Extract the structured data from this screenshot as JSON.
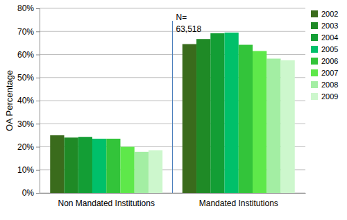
{
  "chart_data": {
    "type": "bar",
    "y_label": "OA Percentage",
    "annotation": [
      "N=",
      "63,518"
    ],
    "categories": [
      "Non Mandated Institutions",
      "Mandated Institutions"
    ],
    "series": [
      {
        "name": "2002",
        "color": "#3a6b1c",
        "values": [
          25,
          64.5
        ]
      },
      {
        "name": "2003",
        "color": "#1f8a26",
        "values": [
          24,
          66.7
        ]
      },
      {
        "name": "2004",
        "color": "#139e35",
        "values": [
          24.3,
          69.2
        ]
      },
      {
        "name": "2005",
        "color": "#00c06a",
        "values": [
          23.5,
          69.5
        ]
      },
      {
        "name": "2006",
        "color": "#33c43a",
        "values": [
          23.5,
          64.2
        ]
      },
      {
        "name": "2007",
        "color": "#5ee84a",
        "values": [
          20,
          61.5
        ]
      },
      {
        "name": "2008",
        "color": "#a3eea3",
        "values": [
          17.8,
          58.2
        ]
      },
      {
        "name": "2009",
        "color": "#cdf7cd",
        "values": [
          18.5,
          57.5
        ]
      }
    ],
    "ylim": [
      0,
      80
    ],
    "yticks": [
      {
        "value": 0,
        "label": "0%"
      },
      {
        "value": 10,
        "label": "10%"
      },
      {
        "value": 20,
        "label": "20%"
      },
      {
        "value": 30,
        "label": "30%"
      },
      {
        "value": 40,
        "label": "40%"
      },
      {
        "value": 50,
        "label": "50%"
      },
      {
        "value": 60,
        "label": "60%"
      },
      {
        "value": 70,
        "label": "70%"
      },
      {
        "value": 80,
        "label": "80%"
      }
    ],
    "grid": true,
    "legend": "right"
  }
}
